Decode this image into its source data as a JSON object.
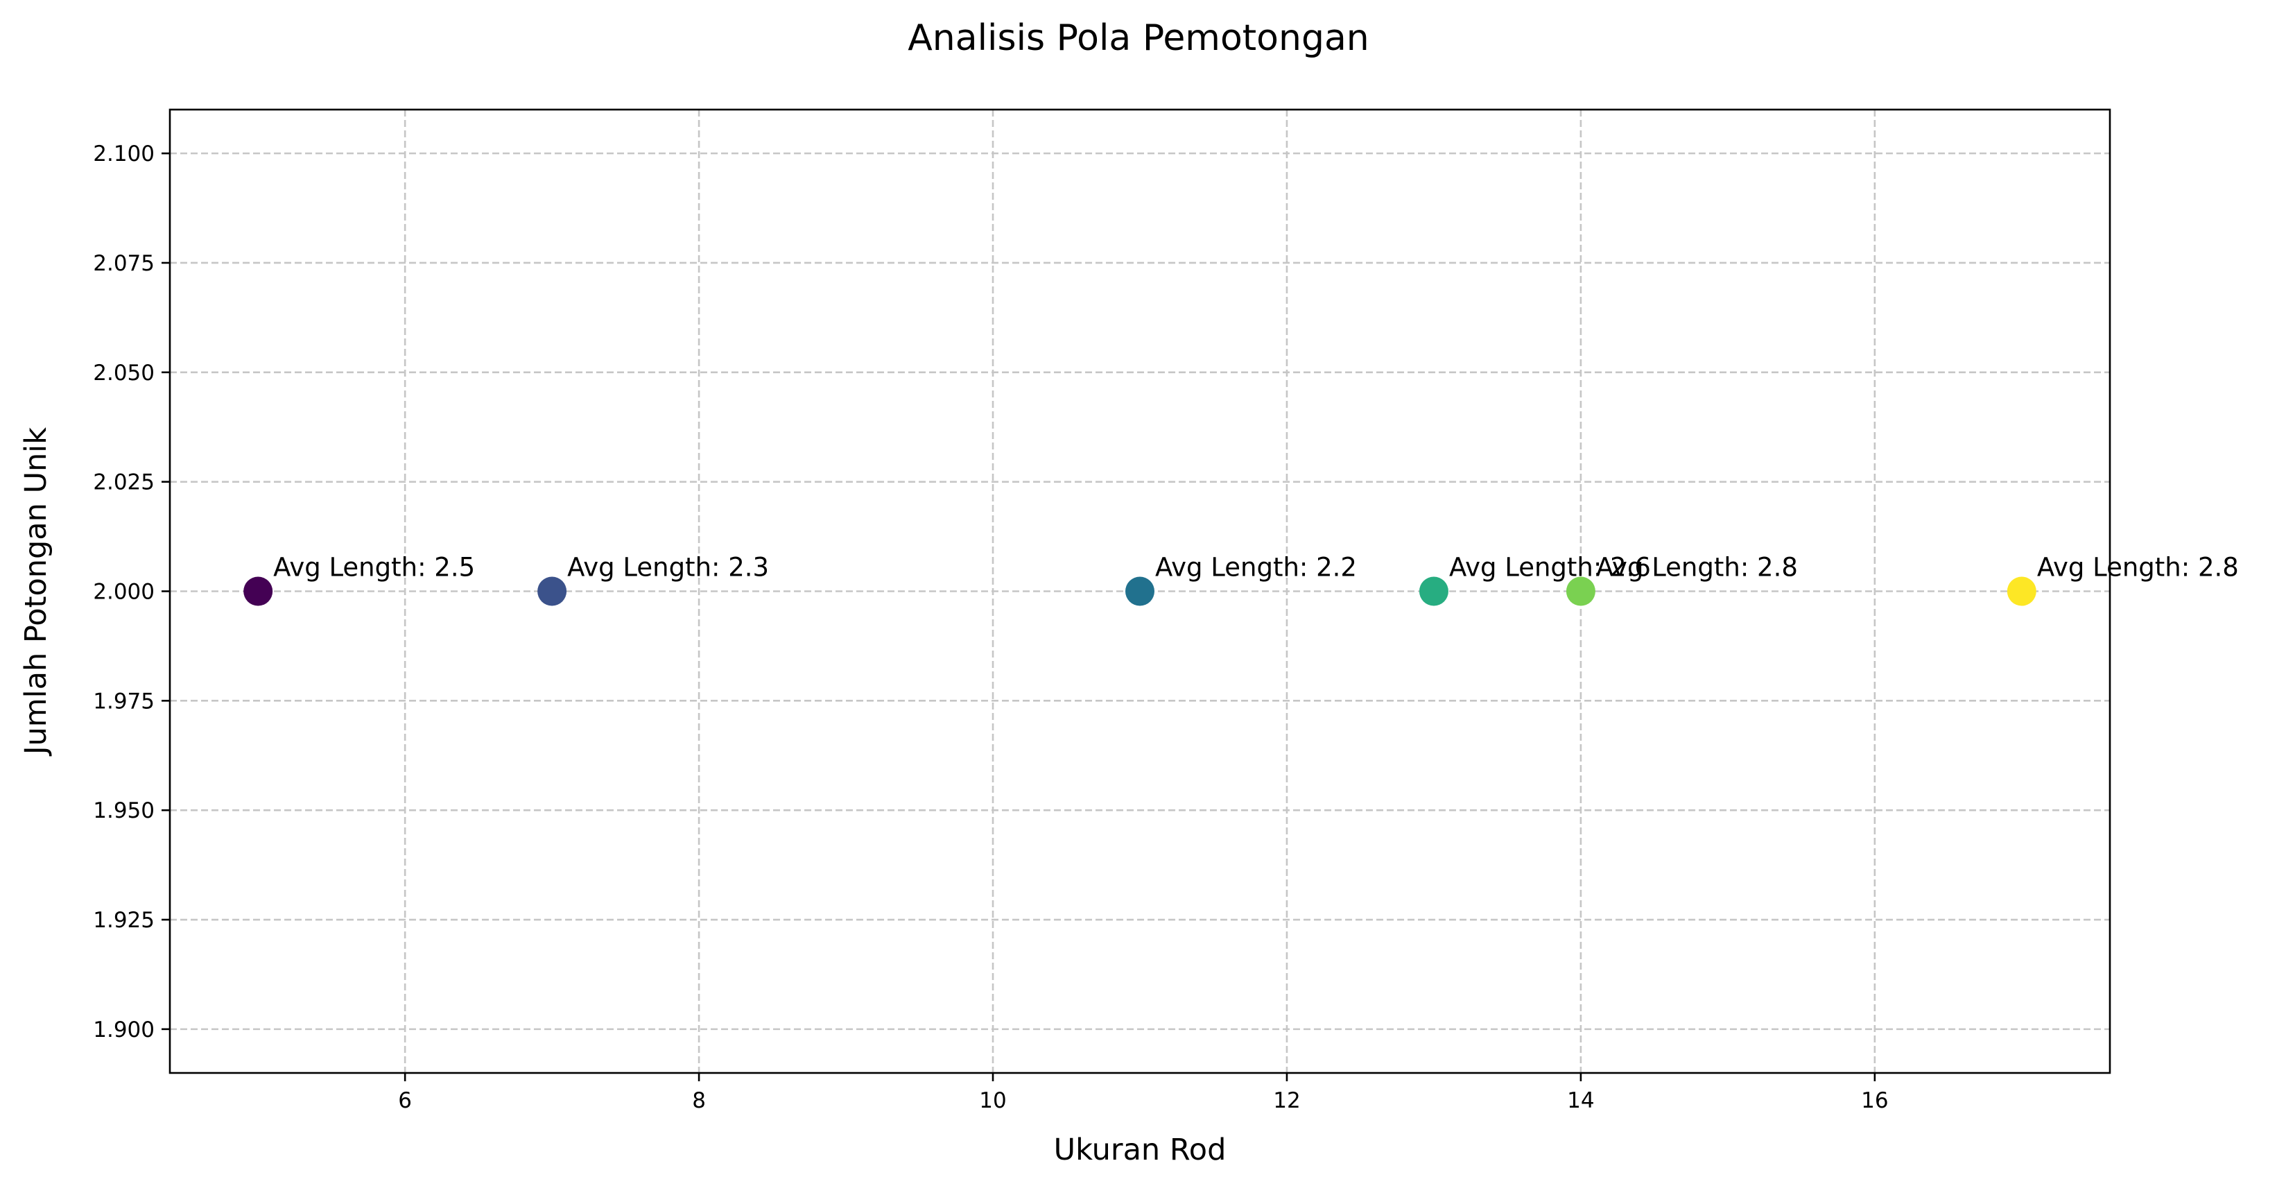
{
  "chart_data": {
    "type": "scatter",
    "title": "Analisis Pola Pemotongan",
    "xlabel": "Ukuran Rod",
    "ylabel": "Jumlah Potongan Unik",
    "xlim": [
      4.4,
      17.6
    ],
    "ylim": [
      1.89,
      2.11
    ],
    "xticks": [
      6,
      8,
      10,
      12,
      14,
      16
    ],
    "xtick_labels": [
      "6",
      "8",
      "10",
      "12",
      "14",
      "16"
    ],
    "yticks": [
      1.9,
      1.925,
      1.95,
      1.975,
      2.0,
      2.025,
      2.05,
      2.075,
      2.1
    ],
    "ytick_labels": [
      "1.900",
      "1.925",
      "1.950",
      "1.975",
      "2.000",
      "2.025",
      "2.050",
      "2.075",
      "2.100"
    ],
    "grid": true,
    "colormap": "viridis",
    "points": [
      {
        "x": 5,
        "y": 2.0,
        "color": "#440154",
        "label": "Avg Length: 2.5"
      },
      {
        "x": 7,
        "y": 2.0,
        "color": "#3b528b",
        "label": "Avg Length: 2.3"
      },
      {
        "x": 11,
        "y": 2.0,
        "color": "#21718e",
        "label": "Avg Length: 2.2"
      },
      {
        "x": 13,
        "y": 2.0,
        "color": "#27ad81",
        "label": "Avg Length: 2.6"
      },
      {
        "x": 14,
        "y": 2.0,
        "color": "#7ad151",
        "label": "Avg Length: 2.8"
      },
      {
        "x": 17,
        "y": 2.0,
        "color": "#fde725",
        "label": "Avg Length: 2.8"
      }
    ]
  }
}
